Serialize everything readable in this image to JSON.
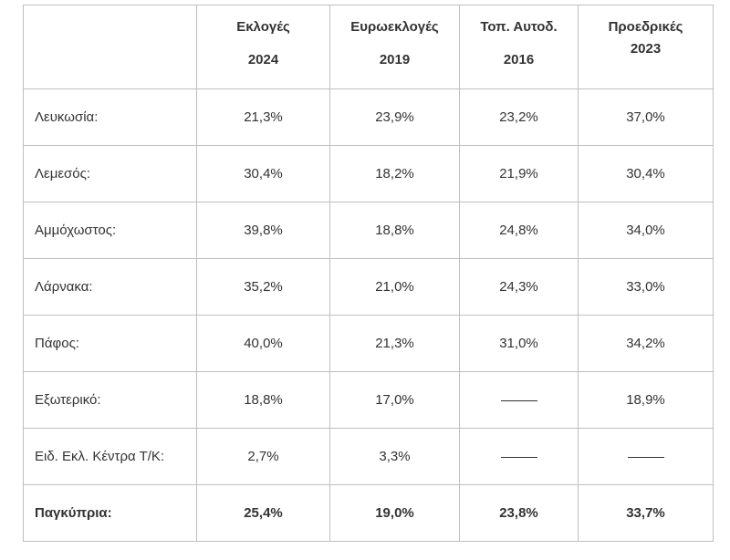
{
  "table": {
    "headers": [
      {
        "line1": "Εκλογές",
        "line2": "2024"
      },
      {
        "line1": "Ευρωεκλογές",
        "line2": "2019"
      },
      {
        "line1": "Τοπ. Αυτοδ.",
        "line2": "2016"
      },
      {
        "line1": "Προεδρικές",
        "line2": "2023"
      }
    ],
    "rows": [
      {
        "label": "Λευκωσία:",
        "values": [
          "21,3%",
          "23,9%",
          "23,2%",
          "37,0%"
        ]
      },
      {
        "label": "Λεμεσός:",
        "values": [
          "30,4%",
          "18,2%",
          "21,9%",
          "30,4%"
        ]
      },
      {
        "label": "Αμμόχωστος:",
        "values": [
          "39,8%",
          "18,8%",
          "24,8%",
          "34,0%"
        ]
      },
      {
        "label": "Λάρνακα:",
        "values": [
          "35,2%",
          "21,0%",
          "24,3%",
          "33,0%"
        ]
      },
      {
        "label": "Πάφος:",
        "values": [
          "40,0%",
          "21,3%",
          "31,0%",
          "34,2%"
        ]
      },
      {
        "label": "Εξωτερικό:",
        "values": [
          "18,8%",
          "17,0%",
          "——",
          "18,9%"
        ]
      },
      {
        "label": "Ειδ. Εκλ. Κέντρα Τ/Κ:",
        "values": [
          "2,7%",
          "3,3%",
          "——",
          "——"
        ]
      }
    ],
    "total": {
      "label": "Παγκύπρια:",
      "values": [
        "25,4%",
        "19,0%",
        "23,8%",
        "33,7%"
      ]
    }
  }
}
